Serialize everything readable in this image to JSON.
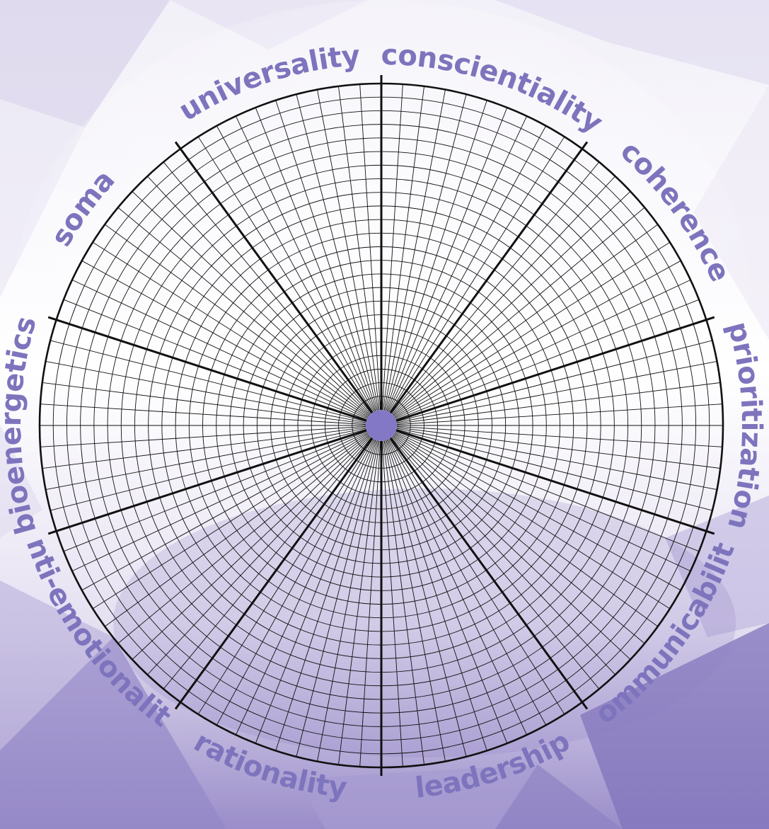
{
  "wheel": {
    "sectors": [
      {
        "label": "conscientiality"
      },
      {
        "label": "coherence"
      },
      {
        "label": "prioritization"
      },
      {
        "label": "communicability"
      },
      {
        "label": "leadership"
      },
      {
        "label": "rationality"
      },
      {
        "label": "anti-emotionality"
      },
      {
        "label": "bioenergetics"
      },
      {
        "label": "soma"
      },
      {
        "label": "universality"
      }
    ],
    "rings": 24,
    "sub_divisions_per_sector": 9
  },
  "colors": {
    "label": "#7d74bd",
    "hub": "#8378c6",
    "grid_line": "#111111",
    "background_top": "#ffffff",
    "background_bottom": "#8e7fc4"
  }
}
